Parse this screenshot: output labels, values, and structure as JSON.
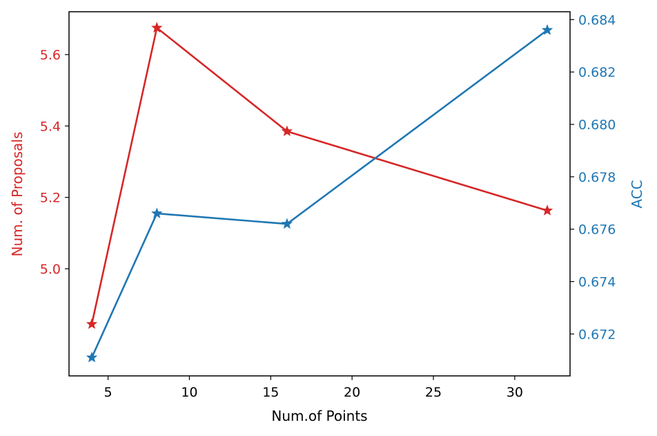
{
  "chart_data": {
    "type": "line",
    "title": "",
    "xlabel": "Num.of Points",
    "ylabel_left": "Num. of Proposals",
    "ylabel_right": "ACC",
    "x": [
      4,
      8,
      16,
      32
    ],
    "xlim": [
      2.6,
      33.4
    ],
    "xticks": [
      5,
      10,
      15,
      20,
      25,
      30
    ],
    "grid": false,
    "series": [
      {
        "name": "Num. of Proposals",
        "axis": "left",
        "color": "#d62728",
        "marker": "star",
        "values": [
          4.845,
          5.675,
          5.385,
          5.163
        ]
      },
      {
        "name": "ACC",
        "axis": "right",
        "color": "#1f77b4",
        "marker": "star",
        "values": [
          0.6711,
          0.6766,
          0.6762,
          0.6836
        ]
      }
    ],
    "ylim_left": [
      4.7,
      5.72
    ],
    "yticks_left": [
      "5.0",
      "5.2",
      "5.4",
      "5.6"
    ],
    "ylim_right": [
      0.6704,
      0.6843
    ],
    "yticks_right": [
      "0.672",
      "0.674",
      "0.676",
      "0.678",
      "0.680",
      "0.682",
      "0.684"
    ]
  }
}
